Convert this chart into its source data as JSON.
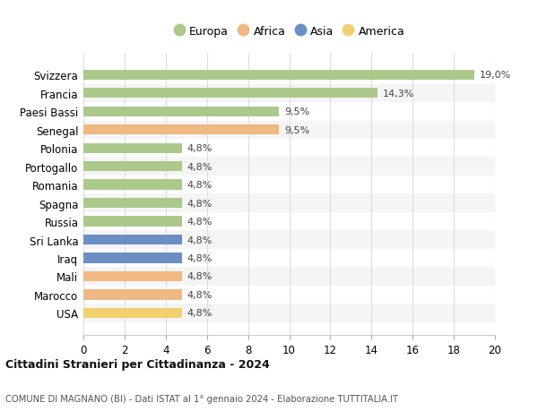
{
  "countries": [
    "Svizzera",
    "Francia",
    "Paesi Bassi",
    "Senegal",
    "Polonia",
    "Portogallo",
    "Romania",
    "Spagna",
    "Russia",
    "Sri Lanka",
    "Iraq",
    "Mali",
    "Marocco",
    "USA"
  ],
  "values": [
    19.0,
    14.3,
    9.5,
    9.5,
    4.8,
    4.8,
    4.8,
    4.8,
    4.8,
    4.8,
    4.8,
    4.8,
    4.8,
    4.8
  ],
  "continents": [
    "Europa",
    "Europa",
    "Europa",
    "Africa",
    "Europa",
    "Europa",
    "Europa",
    "Europa",
    "Europa",
    "Asia",
    "Asia",
    "Africa",
    "Africa",
    "America"
  ],
  "colors": {
    "Europa": "#aac98a",
    "Africa": "#f0b882",
    "Asia": "#6b8ec4",
    "America": "#f0d070"
  },
  "xlim": [
    0,
    20
  ],
  "xticks": [
    0,
    2,
    4,
    6,
    8,
    10,
    12,
    14,
    16,
    18,
    20
  ],
  "title": "Cittadini Stranieri per Cittadinanza - 2024",
  "subtitle": "COMUNE DI MAGNANO (BI) - Dati ISTAT al 1° gennaio 2024 - Elaborazione TUTTITALIA.IT",
  "bg_color": "#ffffff",
  "grid_color": "#dddddd",
  "bar_height": 0.55,
  "row_bg_odd": "#f5f5f5",
  "row_bg_even": "#ffffff"
}
